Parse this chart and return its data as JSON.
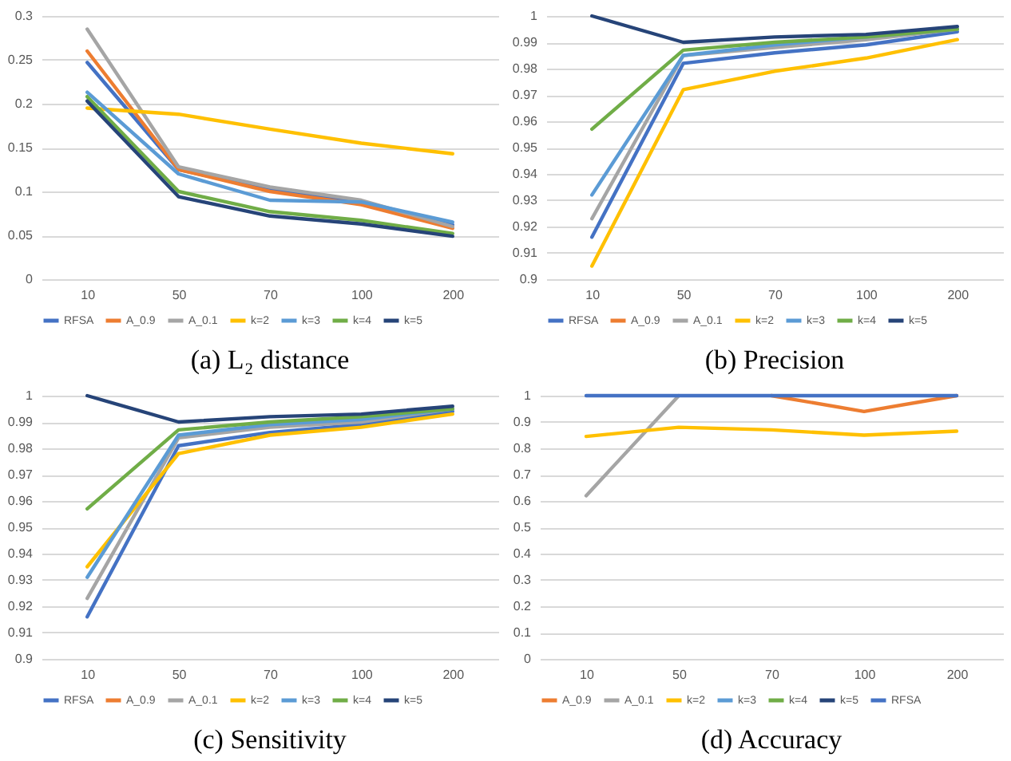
{
  "chart_data": [
    {
      "type": "line",
      "title": "(a) L₂ distance",
      "categories": [
        "10",
        "50",
        "70",
        "100",
        "200"
      ],
      "ylim": [
        0,
        0.3
      ],
      "yticks": [
        0,
        0.05,
        0.1,
        0.15,
        0.2,
        0.25,
        0.3
      ],
      "grid": "y",
      "legend": "bottom",
      "series": [
        {
          "name": "RFSA",
          "color": "#4472c4",
          "values": [
            0.247,
            0.125,
            0.102,
            0.088,
            0.062
          ]
        },
        {
          "name": "A_0.9",
          "color": "#ed7d31",
          "values": [
            0.26,
            0.125,
            0.1,
            0.085,
            0.058
          ]
        },
        {
          "name": "A_0.1",
          "color": "#a5a5a5",
          "values": [
            0.285,
            0.128,
            0.105,
            0.09,
            0.06
          ]
        },
        {
          "name": "k=2",
          "color": "#ffc000",
          "values": [
            0.195,
            0.188,
            0.171,
            0.155,
            0.143
          ]
        },
        {
          "name": "k=3",
          "color": "#5b9bd5",
          "values": [
            0.213,
            0.12,
            0.09,
            0.088,
            0.065
          ]
        },
        {
          "name": "k=4",
          "color": "#70ad47",
          "values": [
            0.208,
            0.1,
            0.077,
            0.067,
            0.052
          ]
        },
        {
          "name": "k=5",
          "color": "#264478",
          "values": [
            0.203,
            0.094,
            0.072,
            0.063,
            0.049
          ]
        }
      ]
    },
    {
      "type": "line",
      "title": "(b) Precision",
      "categories": [
        "10",
        "50",
        "70",
        "100",
        "200"
      ],
      "ylim": [
        0.9,
        1
      ],
      "yticks": [
        0.9,
        0.91,
        0.92,
        0.93,
        0.94,
        0.95,
        0.96,
        0.97,
        0.98,
        0.99,
        1
      ],
      "grid": "y",
      "legend": "bottom",
      "series": [
        {
          "name": "RFSA",
          "color": "#4472c4",
          "values": [
            0.916,
            0.982,
            0.986,
            0.989,
            0.994
          ]
        },
        {
          "name": "A_0.9",
          "color": "#ed7d31",
          "values": [
            null,
            null,
            null,
            null,
            null
          ]
        },
        {
          "name": "A_0.1",
          "color": "#a5a5a5",
          "values": [
            0.923,
            0.985,
            0.988,
            0.991,
            0.995
          ]
        },
        {
          "name": "k=2",
          "color": "#ffc000",
          "values": [
            0.905,
            0.972,
            0.979,
            0.984,
            0.991
          ]
        },
        {
          "name": "k=3",
          "color": "#5b9bd5",
          "values": [
            0.932,
            0.985,
            0.989,
            0.992,
            0.995
          ]
        },
        {
          "name": "k=4",
          "color": "#70ad47",
          "values": [
            0.957,
            0.987,
            0.99,
            0.992,
            0.995
          ]
        },
        {
          "name": "k=5",
          "color": "#264478",
          "values": [
            1,
            0.99,
            0.992,
            0.993,
            0.996
          ]
        }
      ]
    },
    {
      "type": "line",
      "title": "(c) Sensitivity",
      "categories": [
        "10",
        "50",
        "70",
        "100",
        "200"
      ],
      "ylim": [
        0.9,
        1
      ],
      "yticks": [
        0.9,
        0.91,
        0.92,
        0.93,
        0.94,
        0.95,
        0.96,
        0.97,
        0.98,
        0.99,
        1
      ],
      "grid": "y",
      "legend": "bottom",
      "series": [
        {
          "name": "RFSA",
          "color": "#4472c4",
          "values": [
            0.916,
            0.981,
            0.986,
            0.989,
            0.994
          ]
        },
        {
          "name": "A_0.9",
          "color": "#ed7d31",
          "values": [
            null,
            null,
            null,
            null,
            null
          ]
        },
        {
          "name": "A_0.1",
          "color": "#a5a5a5",
          "values": [
            0.923,
            0.984,
            0.988,
            0.99,
            0.995
          ]
        },
        {
          "name": "k=2",
          "color": "#ffc000",
          "values": [
            0.935,
            0.978,
            0.985,
            0.988,
            0.993
          ]
        },
        {
          "name": "k=3",
          "color": "#5b9bd5",
          "values": [
            0.931,
            0.985,
            0.989,
            0.991,
            0.995
          ]
        },
        {
          "name": "k=4",
          "color": "#70ad47",
          "values": [
            0.957,
            0.987,
            0.99,
            0.992,
            0.995
          ]
        },
        {
          "name": "k=5",
          "color": "#264478",
          "values": [
            1,
            0.99,
            0.992,
            0.993,
            0.996
          ]
        }
      ]
    },
    {
      "type": "line",
      "title": "(d) Accuracy",
      "categories": [
        "10",
        "50",
        "70",
        "100",
        "200"
      ],
      "ylim": [
        0,
        1
      ],
      "yticks": [
        0,
        0.1,
        0.2,
        0.3,
        0.4,
        0.5,
        0.6,
        0.7,
        0.8,
        0.9,
        1
      ],
      "grid": "y",
      "legend": "bottom",
      "series": [
        {
          "name": "A_0.9",
          "color": "#ed7d31",
          "values": [
            null,
            null,
            1,
            0.94,
            1
          ]
        },
        {
          "name": "A_0.1",
          "color": "#a5a5a5",
          "values": [
            0.62,
            1,
            null,
            null,
            null
          ]
        },
        {
          "name": "k=2",
          "color": "#ffc000",
          "values": [
            0.845,
            0.88,
            0.87,
            0.85,
            0.865
          ]
        },
        {
          "name": "k=3",
          "color": "#5b9bd5",
          "values": [
            null,
            null,
            null,
            null,
            null
          ]
        },
        {
          "name": "k=4",
          "color": "#70ad47",
          "values": [
            null,
            null,
            null,
            null,
            null
          ]
        },
        {
          "name": "k=5",
          "color": "#264478",
          "values": [
            null,
            null,
            null,
            null,
            null
          ]
        },
        {
          "name": "RFSA",
          "color": "#4472c4",
          "values": [
            1,
            1,
            1,
            1,
            1
          ]
        }
      ]
    }
  ]
}
